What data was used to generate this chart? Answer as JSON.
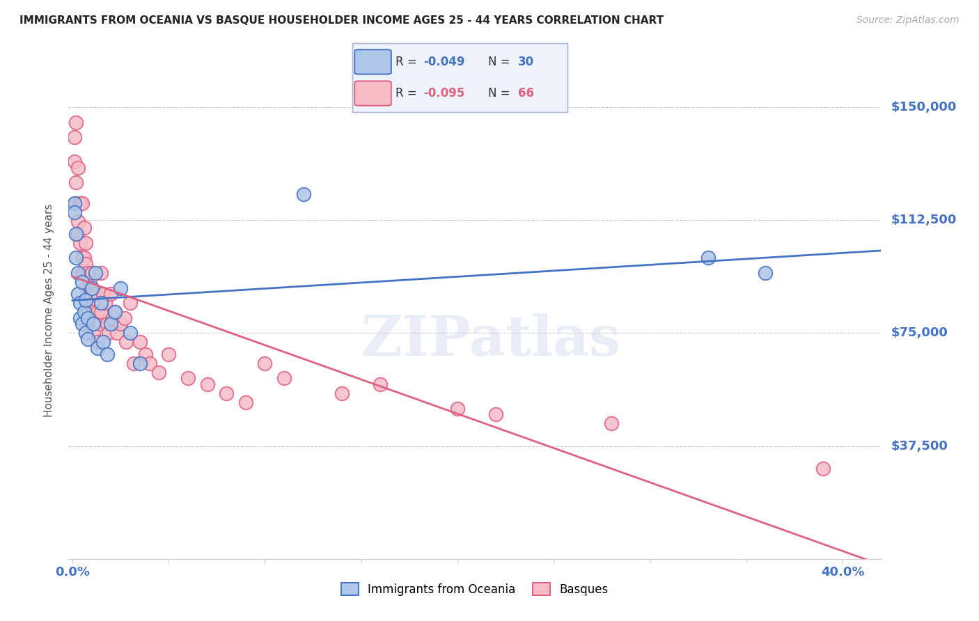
{
  "title": "IMMIGRANTS FROM OCEANIA VS BASQUE HOUSEHOLDER INCOME AGES 25 - 44 YEARS CORRELATION CHART",
  "source": "Source: ZipAtlas.com",
  "ylabel": "Householder Income Ages 25 - 44 years",
  "ytick_labels": [
    "$37,500",
    "$75,000",
    "$112,500",
    "$150,000"
  ],
  "ytick_values": [
    37500,
    75000,
    112500,
    150000
  ],
  "ymin": 0,
  "ymax": 165000,
  "xmin": -0.002,
  "xmax": 0.42,
  "watermark": "ZIPatlas",
  "blue_R": "-0.049",
  "blue_N": "30",
  "pink_R": "-0.095",
  "pink_N": "66",
  "blue_scatter_x": [
    0.001,
    0.001,
    0.002,
    0.002,
    0.003,
    0.003,
    0.004,
    0.004,
    0.005,
    0.005,
    0.006,
    0.007,
    0.007,
    0.008,
    0.008,
    0.01,
    0.011,
    0.012,
    0.013,
    0.015,
    0.016,
    0.018,
    0.02,
    0.022,
    0.025,
    0.03,
    0.035,
    0.12,
    0.33,
    0.36
  ],
  "blue_scatter_y": [
    118000,
    115000,
    108000,
    100000,
    95000,
    88000,
    85000,
    80000,
    92000,
    78000,
    82000,
    86000,
    75000,
    80000,
    73000,
    90000,
    78000,
    95000,
    70000,
    85000,
    72000,
    68000,
    78000,
    82000,
    90000,
    75000,
    65000,
    121000,
    100000,
    95000
  ],
  "pink_scatter_x": [
    0.001,
    0.001,
    0.002,
    0.002,
    0.002,
    0.003,
    0.003,
    0.003,
    0.004,
    0.004,
    0.005,
    0.005,
    0.005,
    0.006,
    0.006,
    0.006,
    0.007,
    0.007,
    0.007,
    0.008,
    0.008,
    0.008,
    0.009,
    0.009,
    0.01,
    0.01,
    0.01,
    0.011,
    0.011,
    0.012,
    0.012,
    0.013,
    0.013,
    0.014,
    0.015,
    0.015,
    0.016,
    0.017,
    0.018,
    0.019,
    0.02,
    0.021,
    0.022,
    0.023,
    0.025,
    0.027,
    0.028,
    0.03,
    0.032,
    0.035,
    0.038,
    0.04,
    0.045,
    0.05,
    0.06,
    0.07,
    0.08,
    0.09,
    0.1,
    0.11,
    0.14,
    0.16,
    0.2,
    0.22,
    0.28,
    0.39
  ],
  "pink_scatter_y": [
    140000,
    132000,
    125000,
    145000,
    118000,
    130000,
    112000,
    108000,
    118000,
    105000,
    100000,
    95000,
    118000,
    110000,
    100000,
    95000,
    105000,
    98000,
    90000,
    95000,
    88000,
    85000,
    92000,
    80000,
    95000,
    88000,
    78000,
    82000,
    75000,
    88000,
    80000,
    82000,
    72000,
    78000,
    95000,
    82000,
    88000,
    85000,
    78000,
    75000,
    88000,
    80000,
    82000,
    75000,
    78000,
    80000,
    72000,
    85000,
    65000,
    72000,
    68000,
    65000,
    62000,
    68000,
    60000,
    58000,
    55000,
    52000,
    65000,
    60000,
    55000,
    58000,
    50000,
    48000,
    45000,
    30000
  ],
  "blue_color": "#aec6e8",
  "blue_edge_color": "#4472c4",
  "pink_color": "#f5bcc8",
  "pink_edge_color": "#e06080",
  "trendline_blue": "#4472c4",
  "trendline_pink": "#e06080",
  "grid_color": "#cccccc",
  "title_color": "#222222",
  "axis_label_color": "#555555",
  "ytick_color": "#4472c4",
  "xtick_color": "#4472c4",
  "source_color": "#aaaaaa",
  "legend_bg": "#eef2fb",
  "legend_border": "#b0b8d8"
}
